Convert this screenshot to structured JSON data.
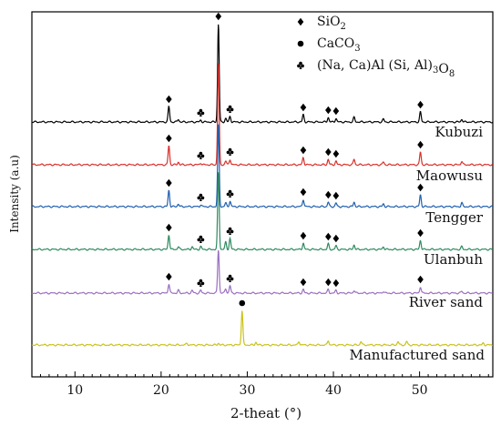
{
  "chart_data": {
    "type": "line",
    "title": "",
    "xlabel": "2-theat (°)",
    "ylabel": "Intensity (a.u)",
    "xlim": [
      5,
      58.5
    ],
    "x_ticks": [
      10,
      20,
      30,
      40,
      50
    ],
    "y_ticks": [],
    "grid": false,
    "legend": {
      "position": "top-right",
      "entries": [
        {
          "marker": "diamond",
          "label_parts": [
            {
              "t": "SiO"
            },
            {
              "t": "2",
              "sub": true
            }
          ]
        },
        {
          "marker": "circle",
          "label_parts": [
            {
              "t": "CaCO"
            },
            {
              "t": "3",
              "sub": true
            }
          ]
        },
        {
          "marker": "club",
          "label_parts": [
            {
              "t": "(Na, Ca)Al (Si, Al)"
            },
            {
              "t": "3",
              "sub": true
            },
            {
              "t": "O"
            },
            {
              "t": "8",
              "sub": true
            }
          ]
        }
      ]
    },
    "series": [
      {
        "name": "Kubuzi",
        "color": "#000000",
        "peaks": [
          [
            20.9,
            17
          ],
          [
            22.0,
            3
          ],
          [
            24.6,
            2
          ],
          [
            26.65,
            108
          ],
          [
            27.5,
            4
          ],
          [
            28.0,
            6
          ],
          [
            36.5,
            8
          ],
          [
            39.4,
            5
          ],
          [
            40.3,
            4
          ],
          [
            42.4,
            5
          ],
          [
            45.8,
            3
          ],
          [
            50.1,
            11
          ],
          [
            54.9,
            3
          ]
        ],
        "markers": [
          {
            "x": 20.9,
            "type": "diamond"
          },
          {
            "x": 24.6,
            "type": "club"
          },
          {
            "x": 26.65,
            "type": "diamond"
          },
          {
            "x": 28.0,
            "type": "club"
          },
          {
            "x": 36.5,
            "type": "diamond"
          },
          {
            "x": 39.4,
            "type": "diamond"
          },
          {
            "x": 40.3,
            "type": "diamond"
          },
          {
            "x": 50.1,
            "type": "diamond"
          }
        ]
      },
      {
        "name": "Maowusu",
        "color": "#d9302a",
        "peaks": [
          [
            20.9,
            21
          ],
          [
            22.0,
            3
          ],
          [
            24.6,
            2
          ],
          [
            26.65,
            112
          ],
          [
            27.5,
            4
          ],
          [
            28.0,
            6
          ],
          [
            36.5,
            8
          ],
          [
            39.4,
            6
          ],
          [
            40.3,
            4
          ],
          [
            42.4,
            6
          ],
          [
            45.8,
            3
          ],
          [
            50.1,
            14
          ],
          [
            54.9,
            4
          ]
        ],
        "markers": [
          {
            "x": 20.9,
            "type": "diamond"
          },
          {
            "x": 24.6,
            "type": "club"
          },
          {
            "x": 28.0,
            "type": "club"
          },
          {
            "x": 36.5,
            "type": "diamond"
          },
          {
            "x": 39.4,
            "type": "diamond"
          },
          {
            "x": 40.3,
            "type": "diamond"
          },
          {
            "x": 50.1,
            "type": "diamond"
          }
        ]
      },
      {
        "name": "Tengger",
        "color": "#1f5fb0",
        "peaks": [
          [
            20.9,
            18
          ],
          [
            22.0,
            3
          ],
          [
            24.6,
            2
          ],
          [
            26.65,
            90
          ],
          [
            27.5,
            4
          ],
          [
            28.0,
            6
          ],
          [
            36.5,
            8
          ],
          [
            39.4,
            5
          ],
          [
            40.3,
            4
          ],
          [
            42.4,
            5
          ],
          [
            45.8,
            3
          ],
          [
            50.1,
            13
          ],
          [
            54.9,
            4
          ]
        ],
        "markers": [
          {
            "x": 20.9,
            "type": "diamond"
          },
          {
            "x": 24.6,
            "type": "club"
          },
          {
            "x": 28.0,
            "type": "club"
          },
          {
            "x": 36.5,
            "type": "diamond"
          },
          {
            "x": 39.4,
            "type": "diamond"
          },
          {
            "x": 40.3,
            "type": "diamond"
          },
          {
            "x": 50.1,
            "type": "diamond"
          }
        ]
      },
      {
        "name": "Ulanbuh",
        "color": "#2e8a60",
        "peaks": [
          [
            20.9,
            16
          ],
          [
            22.0,
            3
          ],
          [
            23.6,
            3
          ],
          [
            24.6,
            3
          ],
          [
            26.65,
            85
          ],
          [
            27.5,
            8
          ],
          [
            28.0,
            12
          ],
          [
            36.5,
            7
          ],
          [
            39.4,
            6
          ],
          [
            40.3,
            4
          ],
          [
            42.4,
            5
          ],
          [
            45.8,
            3
          ],
          [
            50.1,
            10
          ],
          [
            54.9,
            3
          ]
        ],
        "markers": [
          {
            "x": 20.9,
            "type": "diamond"
          },
          {
            "x": 24.6,
            "type": "club"
          },
          {
            "x": 28.0,
            "type": "club"
          },
          {
            "x": 36.5,
            "type": "diamond"
          },
          {
            "x": 39.4,
            "type": "diamond"
          },
          {
            "x": 40.3,
            "type": "diamond"
          },
          {
            "x": 50.1,
            "type": "diamond"
          }
        ]
      },
      {
        "name": "River sand",
        "color": "#9a6fbf",
        "peaks": [
          [
            20.9,
            10
          ],
          [
            22.0,
            3
          ],
          [
            23.6,
            3
          ],
          [
            24.6,
            3
          ],
          [
            26.65,
            48
          ],
          [
            27.5,
            5
          ],
          [
            28.0,
            8
          ],
          [
            36.5,
            4
          ],
          [
            39.4,
            4
          ],
          [
            40.3,
            3
          ],
          [
            42.4,
            3
          ],
          [
            45.8,
            2
          ],
          [
            50.1,
            7
          ],
          [
            54.9,
            2
          ]
        ],
        "markers": [
          {
            "x": 20.9,
            "type": "diamond"
          },
          {
            "x": 24.6,
            "type": "club"
          },
          {
            "x": 28.0,
            "type": "club"
          },
          {
            "x": 36.5,
            "type": "diamond"
          },
          {
            "x": 39.4,
            "type": "diamond"
          },
          {
            "x": 40.3,
            "type": "diamond"
          },
          {
            "x": 50.1,
            "type": "diamond"
          }
        ]
      },
      {
        "name": "Manufactured sand",
        "color": "#c9c21a",
        "peaks": [
          [
            23.0,
            2
          ],
          [
            26.65,
            2
          ],
          [
            29.4,
            38
          ],
          [
            31.0,
            3
          ],
          [
            36.0,
            4
          ],
          [
            39.4,
            5
          ],
          [
            43.2,
            4
          ],
          [
            47.5,
            4
          ],
          [
            48.5,
            4
          ],
          [
            57.4,
            2
          ]
        ],
        "markers": [
          {
            "x": 29.4,
            "type": "circle"
          }
        ]
      }
    ]
  }
}
